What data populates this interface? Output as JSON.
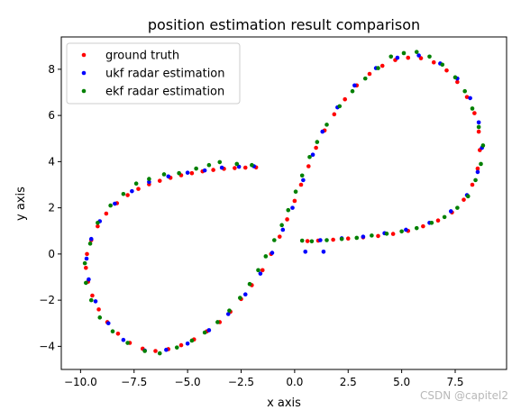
{
  "chart_data": {
    "type": "scatter",
    "title": "position estimation result comparison",
    "xlabel": "x axis",
    "ylabel": "y axis",
    "xlim": [
      -10.9,
      9.9
    ],
    "ylim": [
      -5.0,
      9.4
    ],
    "xticks": [
      -10.0,
      -7.5,
      -5.0,
      -2.5,
      0.0,
      2.5,
      5.0,
      7.5
    ],
    "xtick_labels": [
      "−10.0",
      "−7.5",
      "−5.0",
      "−2.5",
      "0.0",
      "2.5",
      "5.0",
      "7.5"
    ],
    "yticks": [
      -4,
      -2,
      0,
      2,
      4,
      6,
      8
    ],
    "ytick_labels": [
      "−4",
      "−2",
      "0",
      "2",
      "4",
      "6",
      "8"
    ],
    "grid": false,
    "legend_position": "top-left",
    "series": [
      {
        "name": "ground truth",
        "color": "#ff0000",
        "points": [
          [
            -1.8,
            3.75
          ],
          [
            -2.3,
            3.74
          ],
          [
            -2.8,
            3.72
          ],
          [
            -3.3,
            3.69
          ],
          [
            -3.8,
            3.64
          ],
          [
            -4.3,
            3.58
          ],
          [
            -4.8,
            3.5
          ],
          [
            -5.3,
            3.41
          ],
          [
            -5.8,
            3.3
          ],
          [
            -6.3,
            3.17
          ],
          [
            -6.8,
            3.02
          ],
          [
            -7.3,
            2.82
          ],
          [
            -7.8,
            2.55
          ],
          [
            -8.3,
            2.2
          ],
          [
            -8.8,
            1.75
          ],
          [
            -9.2,
            1.2
          ],
          [
            -9.5,
            0.6
          ],
          [
            -9.7,
            0.0
          ],
          [
            -9.75,
            -0.6
          ],
          [
            -9.65,
            -1.2
          ],
          [
            -9.45,
            -1.8
          ],
          [
            -9.15,
            -2.4
          ],
          [
            -8.75,
            -2.95
          ],
          [
            -8.25,
            -3.45
          ],
          [
            -7.7,
            -3.85
          ],
          [
            -7.1,
            -4.1
          ],
          [
            -6.5,
            -4.2
          ],
          [
            -5.9,
            -4.12
          ],
          [
            -5.3,
            -3.95
          ],
          [
            -4.7,
            -3.7
          ],
          [
            -4.1,
            -3.35
          ],
          [
            -3.5,
            -2.95
          ],
          [
            -3.0,
            -2.5
          ],
          [
            -2.5,
            -1.95
          ],
          [
            -2.0,
            -1.35
          ],
          [
            -1.5,
            -0.7
          ],
          [
            -1.1,
            0.0
          ],
          [
            -0.7,
            0.75
          ],
          [
            -0.35,
            1.5
          ],
          [
            0.0,
            2.3
          ],
          [
            0.3,
            3.0
          ],
          [
            0.65,
            3.8
          ],
          [
            1.0,
            4.6
          ],
          [
            1.4,
            5.35
          ],
          [
            1.85,
            6.05
          ],
          [
            2.35,
            6.7
          ],
          [
            2.9,
            7.3
          ],
          [
            3.5,
            7.8
          ],
          [
            4.1,
            8.15
          ],
          [
            4.7,
            8.4
          ],
          [
            5.3,
            8.5
          ],
          [
            5.9,
            8.48
          ],
          [
            6.5,
            8.3
          ],
          [
            7.1,
            7.95
          ],
          [
            7.6,
            7.45
          ],
          [
            8.05,
            6.8
          ],
          [
            8.4,
            6.1
          ],
          [
            8.6,
            5.3
          ],
          [
            8.65,
            4.5
          ],
          [
            8.55,
            3.7
          ],
          [
            8.3,
            3.0
          ],
          [
            7.9,
            2.35
          ],
          [
            7.35,
            1.8
          ],
          [
            6.7,
            1.45
          ],
          [
            6.0,
            1.2
          ],
          [
            5.3,
            1.0
          ],
          [
            4.6,
            0.87
          ],
          [
            3.9,
            0.78
          ],
          [
            3.2,
            0.72
          ],
          [
            2.5,
            0.67
          ],
          [
            1.8,
            0.62
          ],
          [
            1.1,
            0.58
          ],
          [
            0.6,
            0.56
          ]
        ]
      },
      {
        "name": "ukf radar estimation",
        "color": "#0000ff",
        "points": [
          [
            -1.9,
            3.8
          ],
          [
            -2.6,
            3.78
          ],
          [
            -3.4,
            3.74
          ],
          [
            -4.2,
            3.62
          ],
          [
            -5.0,
            3.52
          ],
          [
            -5.9,
            3.36
          ],
          [
            -6.8,
            3.12
          ],
          [
            -7.6,
            2.72
          ],
          [
            -8.4,
            2.18
          ],
          [
            -9.1,
            1.42
          ],
          [
            -9.5,
            0.65
          ],
          [
            -9.72,
            -0.2
          ],
          [
            -9.62,
            -1.1
          ],
          [
            -9.3,
            -2.05
          ],
          [
            -8.7,
            -3.0
          ],
          [
            -8.0,
            -3.72
          ],
          [
            -7.0,
            -4.18
          ],
          [
            -6.0,
            -4.15
          ],
          [
            -5.0,
            -3.88
          ],
          [
            -4.0,
            -3.3
          ],
          [
            -3.1,
            -2.6
          ],
          [
            -2.3,
            -1.75
          ],
          [
            -1.6,
            -0.85
          ],
          [
            -1.05,
            0.05
          ],
          [
            -0.55,
            1.05
          ],
          [
            -0.1,
            2.0
          ],
          [
            0.4,
            3.2
          ],
          [
            0.85,
            4.3
          ],
          [
            1.3,
            5.3
          ],
          [
            2.0,
            6.35
          ],
          [
            2.8,
            7.3
          ],
          [
            3.8,
            8.05
          ],
          [
            4.8,
            8.5
          ],
          [
            5.8,
            8.6
          ],
          [
            6.8,
            8.25
          ],
          [
            7.6,
            7.6
          ],
          [
            8.2,
            6.75
          ],
          [
            8.6,
            5.7
          ],
          [
            8.75,
            4.6
          ],
          [
            8.55,
            3.55
          ],
          [
            8.05,
            2.55
          ],
          [
            7.3,
            1.85
          ],
          [
            6.3,
            1.35
          ],
          [
            5.2,
            1.05
          ],
          [
            4.2,
            0.9
          ],
          [
            3.2,
            0.75
          ],
          [
            2.2,
            0.68
          ],
          [
            1.2,
            0.6
          ],
          [
            0.5,
            0.1
          ],
          [
            1.35,
            0.1
          ]
        ]
      },
      {
        "name": "ekf radar estimation",
        "color": "#008000",
        "points": [
          [
            -2.0,
            3.85
          ],
          [
            -2.7,
            3.9
          ],
          [
            -3.5,
            3.98
          ],
          [
            -4.0,
            3.85
          ],
          [
            -4.6,
            3.7
          ],
          [
            -5.4,
            3.5
          ],
          [
            -6.1,
            3.45
          ],
          [
            -6.8,
            3.25
          ],
          [
            -7.4,
            3.05
          ],
          [
            -8.0,
            2.6
          ],
          [
            -8.6,
            2.1
          ],
          [
            -9.2,
            1.35
          ],
          [
            -9.55,
            0.45
          ],
          [
            -9.8,
            -0.4
          ],
          [
            -9.75,
            -1.25
          ],
          [
            -9.5,
            -2.0
          ],
          [
            -9.1,
            -2.75
          ],
          [
            -8.5,
            -3.35
          ],
          [
            -7.8,
            -3.85
          ],
          [
            -7.0,
            -4.2
          ],
          [
            -6.3,
            -4.3
          ],
          [
            -5.5,
            -4.05
          ],
          [
            -4.8,
            -3.75
          ],
          [
            -4.2,
            -3.4
          ],
          [
            -3.6,
            -2.95
          ],
          [
            -3.05,
            -2.45
          ],
          [
            -2.55,
            -1.9
          ],
          [
            -2.1,
            -1.3
          ],
          [
            -1.7,
            -0.7
          ],
          [
            -1.35,
            -0.1
          ],
          [
            -0.95,
            0.6
          ],
          [
            -0.6,
            1.25
          ],
          [
            -0.3,
            1.9
          ],
          [
            0.05,
            2.7
          ],
          [
            0.35,
            3.4
          ],
          [
            0.7,
            4.2
          ],
          [
            1.05,
            4.85
          ],
          [
            1.5,
            5.6
          ],
          [
            2.1,
            6.4
          ],
          [
            2.7,
            7.05
          ],
          [
            3.3,
            7.6
          ],
          [
            3.9,
            8.05
          ],
          [
            4.5,
            8.55
          ],
          [
            5.1,
            8.7
          ],
          [
            5.7,
            8.75
          ],
          [
            6.3,
            8.55
          ],
          [
            6.9,
            8.2
          ],
          [
            7.5,
            7.65
          ],
          [
            7.95,
            7.05
          ],
          [
            8.3,
            6.3
          ],
          [
            8.6,
            5.5
          ],
          [
            8.8,
            4.7
          ],
          [
            8.7,
            3.9
          ],
          [
            8.45,
            3.2
          ],
          [
            8.1,
            2.5
          ],
          [
            7.6,
            2.0
          ],
          [
            7.0,
            1.6
          ],
          [
            6.4,
            1.35
          ],
          [
            5.7,
            1.12
          ],
          [
            5.0,
            0.98
          ],
          [
            4.3,
            0.88
          ],
          [
            3.6,
            0.8
          ],
          [
            2.9,
            0.7
          ],
          [
            2.2,
            0.65
          ],
          [
            1.5,
            0.6
          ],
          [
            0.8,
            0.55
          ],
          [
            0.35,
            0.58
          ]
        ]
      }
    ]
  },
  "watermark": "CSDN @capitel2"
}
